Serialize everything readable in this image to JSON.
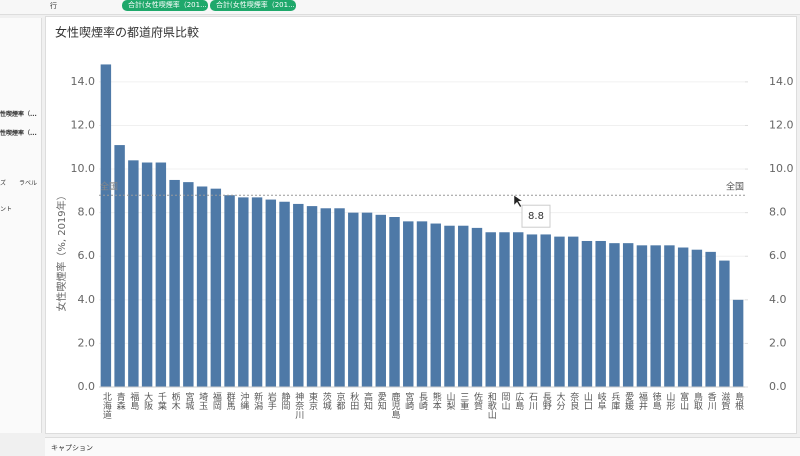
{
  "shelf": {
    "label": "行",
    "pills": [
      "合計(女性喫煙率（201...",
      "合計(女性喫煙率（201..."
    ]
  },
  "side_panel": {
    "fields": [
      "性喫煙率（...",
      "性喫煙率（..."
    ],
    "buttons": [
      "ズ",
      "ラベル",
      "ント"
    ]
  },
  "caption": "キャプション",
  "chart_data": {
    "type": "bar",
    "title": "女性喫煙率の都道府県比較",
    "y_label": "女性喫煙率（%, 2019年）",
    "color": "#4e79a7",
    "categories": [
      "北海道",
      "青森",
      "福島",
      "大阪",
      "千葉",
      "栃木",
      "宮城",
      "埼玉",
      "福岡",
      "群馬",
      "沖縄",
      "新潟",
      "岩手",
      "静岡",
      "神奈川",
      "東京",
      "茨城",
      "京都",
      "秋田",
      "高知",
      "愛知",
      "鹿児島",
      "宮崎",
      "長崎",
      "熊本",
      "山梨",
      "三重",
      "佐賀",
      "和歌山",
      "岡山",
      "広島",
      "石川",
      "長野",
      "大分",
      "奈良",
      "山口",
      "岐阜",
      "兵庫",
      "愛媛",
      "福井",
      "徳島",
      "山形",
      "富山",
      "鳥取",
      "香川",
      "滋賀",
      "島根"
    ],
    "values": [
      14.8,
      11.1,
      10.4,
      10.3,
      10.3,
      9.5,
      9.4,
      9.2,
      9.1,
      8.8,
      8.7,
      8.7,
      8.6,
      8.5,
      8.4,
      8.3,
      8.2,
      8.2,
      8.0,
      8.0,
      7.9,
      7.8,
      7.6,
      7.6,
      7.5,
      7.4,
      7.4,
      7.3,
      7.1,
      7.1,
      7.1,
      7.0,
      7.0,
      6.9,
      6.9,
      6.7,
      6.7,
      6.6,
      6.6,
      6.5,
      6.5,
      6.5,
      6.4,
      6.3,
      6.2,
      5.8,
      4.0
    ],
    "ylim": [
      0,
      15.6
    ],
    "yticks": [
      {
        "value": 0,
        "label": "0.0"
      },
      {
        "value": 2,
        "label": "2.0"
      },
      {
        "value": 4,
        "label": "4.0"
      },
      {
        "value": 6,
        "label": "6.0"
      },
      {
        "value": 8,
        "label": "8.0"
      },
      {
        "value": 10,
        "label": "10.0"
      },
      {
        "value": 12,
        "label": "12.0"
      },
      {
        "value": 14,
        "label": "14.0"
      }
    ],
    "y2lim": [
      0,
      15.6
    ],
    "y2ticks": [
      {
        "value": 0,
        "label": "0.0"
      },
      {
        "value": 2,
        "label": "2.0"
      },
      {
        "value": 4,
        "label": "4.0"
      },
      {
        "value": 6,
        "label": "6.0"
      },
      {
        "value": 8,
        "label": "8.0"
      },
      {
        "value": 10,
        "label": "10.0"
      },
      {
        "value": 12,
        "label": "12.0"
      },
      {
        "value": 14,
        "label": "14.0"
      }
    ],
    "grid": true,
    "reference_line": {
      "label": "全国",
      "value": 8.8
    }
  }
}
